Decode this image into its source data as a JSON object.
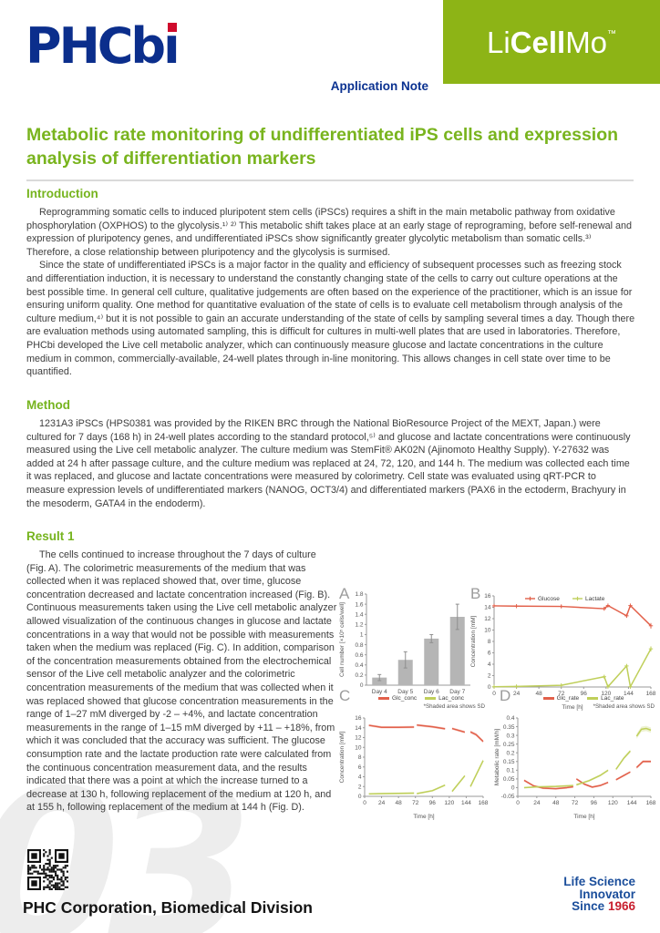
{
  "page": {
    "watermark": "03"
  },
  "brand": {
    "logo_text": "PHCbi",
    "logo_text_base": "PHCb",
    "logo_text_dotless_i": "ı",
    "logo_color": "#0b2e8c",
    "logo_dot_color": "#cf0a2c"
  },
  "header": {
    "product_badge": {
      "li": "Li",
      "cell": "Cell",
      "mo": "Mo",
      "tm": "™",
      "bg_color": "#8db416"
    },
    "note_label": "Application Note",
    "note_color": "#0a3190"
  },
  "title": {
    "text": "Metabolic rate monitoring of undifferentiated iPS cells and expression analysis of differentiation markers",
    "color": "#79b41e"
  },
  "sections": {
    "introduction": {
      "heading": "Introduction",
      "p1": "Reprogramming somatic cells to induced pluripotent stem cells (iPSCs) requires a shift in the main metabolic pathway from oxidative phosphorylation (OXPHOS) to the glycolysis.¹⁾ ²⁾ This metabolic shift takes place at an early stage of reprograming, before self-renewal and expression of pluripotency genes, and undifferentiated iPSCs show significantly greater glycolytic metabolism than somatic cells.³⁾ Therefore, a close relationship between pluripotency and the glycolysis is surmised.",
      "p2": "Since the state of undifferentiated iPSCs is a major factor in the quality and efficiency of subsequent processes such as freezing stock and differentiation induction, it is necessary to understand the constantly changing state of the cells to carry out culture operations at the best possible time. In general cell culture, qualitative judgements are often based on the experience of the practitioner, which is an issue for ensuring uniform quality. One method for quantitative evaluation of the state of cells is to evaluate cell metabolism through analysis of the culture medium,⁴⁾ but it is not possible to gain an accurate understanding of the state of cells by sampling several times a day. Though there are evaluation methods using automated sampling, this is difficult for cultures in multi-well plates that are used in laboratories. Therefore, PHCbi developed the Live cell metabolic analyzer, which can continuously measure glucose and lactate concentrations in the culture medium in common, commercially-available, 24-well plates through in-line monitoring. This allows changes in cell state over time to be quantified."
    },
    "method": {
      "heading": "Method",
      "p1": "1231A3 iPSCs (HPS0381 was provided by the RIKEN BRC through the National BioResource Project of the MEXT, Japan.) were cultured for 7 days (168 h) in 24-well plates according to the standard protocol,⁵⁾ and glucose and lactate concentrations were continuously measured using the Live cell metabolic analyzer. The culture medium was StemFit® AK02N (Ajinomoto Healthy Supply). Y-27632 was added at 24 h after passage culture, and the culture medium was replaced at 24, 72, 120, and 144 h. The medium was collected each time it was replaced, and glucose and lactate concentrations were measured by colorimetry. Cell state was evaluated using qRT-PCR to measure expression levels of undifferentiated markers (NANOG, OCT3/4) and differentiated markers (PAX6 in the ectoderm, Brachyury in the mesoderm, GATA4 in the endoderm)."
    },
    "result1": {
      "heading": "Result 1",
      "p1": "The cells continued to increase throughout the 7 days of culture (Fig. A). The colorimetric measurements of the medium that was collected when it was replaced showed that, over time, glucose concentration decreased and lactate concentration increased (Fig. B). Continuous measurements taken using the Live cell metabolic analyzer allowed visualization of the continuous changes in glucose and lactate concentrations in a way that would not be possible with measurements taken when the medium was replaced (Fig. C). In addition, comparison of the concentration measurements obtained from the electrochemical sensor of the Live cell metabolic analyzer and the colorimetric concentration measurements of the medium that was collected when it was replaced showed that glucose concentration measurements in the range of 1–27 mM diverged by -2 – +4%, and lactate concentration measurements in the range of 1–15 mM diverged by +11 – +18%, from which it was concluded that the accuracy was sufficient. The glucose consumption rate and the lactate production rate were calculated from the continuous concentration measurement data, and the results indicated that there was a point at which the increase turned to a decrease at 130 h, following replacement of the medium at 120 h, and at 155 h, following replacement of the medium at 144 h (Fig. D)."
    }
  },
  "footer": {
    "company": "PHC Corporation, Biomedical Division",
    "tagline_line1": "Life Science",
    "tagline_line2": "Innovator",
    "tagline_line3_prefix": "Since ",
    "tagline_line3_year": "1966",
    "tagline_color": "#1b4e9b",
    "year_color": "#c8202f"
  },
  "chart_data": [
    {
      "id": "A",
      "panel_label": "A",
      "type": "bar",
      "ylabel": "Cell number [×10⁵ cells/well]",
      "ylim": [
        0,
        1.8
      ],
      "ystep": 0.2,
      "categories": [
        "Day 4",
        "Day 5",
        "Day 6",
        "Day 7"
      ],
      "values": [
        0.15,
        0.5,
        0.92,
        1.35
      ],
      "errors": [
        0.06,
        0.16,
        0.08,
        0.25
      ],
      "bar_color": "#b5b5b5",
      "error_color": "#8f8f8f"
    },
    {
      "id": "B",
      "panel_label": "B",
      "type": "line",
      "xlabel": "Time [h]",
      "ylabel": "Concentration [mM]",
      "xlim": [
        0,
        168
      ],
      "xstep": 24,
      "ylim": [
        0,
        16
      ],
      "ystep": 2,
      "legend": [
        {
          "label": "Glucose",
          "color": "#e2604a"
        },
        {
          "label": "Lactate",
          "color": "#bfcf5a"
        }
      ],
      "legend_position": "top-inline",
      "series": [
        {
          "name": "Glucose",
          "color": "#e2604a",
          "marker": "plus",
          "segments": [
            {
              "pts": [
                [
                  0,
                  14.25
                ],
                [
                  24,
                  14.2
                ],
                [
                  72,
                  14.15
                ],
                [
                  118,
                  13.75
                ],
                [
                  122,
                  14.3
                ],
                [
                  142,
                  12.5
                ],
                [
                  146,
                  14.3
                ],
                [
                  168,
                  10.75
                ]
              ]
            }
          ],
          "point_errors": [
            0.15,
            0.1,
            0.25,
            0.3,
            0.1,
            0.35,
            0.1,
            0.5
          ]
        },
        {
          "name": "Lactate",
          "color": "#bfcf5a",
          "marker": "plus",
          "segments": [
            {
              "pts": [
                [
                  0,
                  0.05
                ],
                [
                  24,
                  0.1
                ],
                [
                  72,
                  0.3
                ],
                [
                  118,
                  1.8
                ],
                [
                  122,
                  0.05
                ],
                [
                  142,
                  3.7
                ],
                [
                  146,
                  0.05
                ],
                [
                  168,
                  6.7
                ]
              ]
            }
          ],
          "point_errors": [
            0,
            0,
            0.1,
            0.2,
            0,
            0.3,
            0,
            0.45
          ]
        }
      ]
    },
    {
      "id": "C",
      "panel_label": "C",
      "type": "line",
      "xlabel": "Time [h]",
      "ylabel": "Concentration [mM]",
      "xlim": [
        0,
        168
      ],
      "xstep": 24,
      "ylim": [
        0,
        16
      ],
      "ystep": 2,
      "legend": [
        {
          "label": "Glc_conc",
          "color": "#e2604a"
        },
        {
          "label": "Lac_conc",
          "color": "#bfcf5a"
        }
      ],
      "note": "*Shaded area shows SD",
      "series": [
        {
          "name": "Glc_conc",
          "color": "#e2604a",
          "segments": [
            {
              "pts": [
                [
                  6,
                  14.5
                ],
                [
                  24,
                  14.1
                ],
                [
                  48,
                  14.1
                ],
                [
                  70,
                  14.15
                ]
              ],
              "sd": 0.25
            },
            {
              "pts": [
                [
                  74,
                  14.55
                ],
                [
                  96,
                  14.2
                ],
                [
                  114,
                  13.8
                ]
              ],
              "sd": 0.25
            },
            {
              "pts": [
                [
                  124,
                  13.85
                ],
                [
                  142,
                  13.1
                ]
              ],
              "sd": 0.25
            },
            {
              "pts": [
                [
                  150,
                  13.15
                ],
                [
                  158,
                  12.6
                ],
                [
                  168,
                  11.2
                ]
              ],
              "sd": 0.3
            }
          ]
        },
        {
          "name": "Lac_conc",
          "color": "#bfcf5a",
          "segments": [
            {
              "pts": [
                [
                  6,
                  0.5
                ],
                [
                  24,
                  0.55
                ],
                [
                  48,
                  0.6
                ],
                [
                  70,
                  0.65
                ]
              ],
              "sd": 0.2
            },
            {
              "pts": [
                [
                  74,
                  0.55
                ],
                [
                  96,
                  1.15
                ],
                [
                  114,
                  2.3
                ]
              ],
              "sd": 0.2
            },
            {
              "pts": [
                [
                  124,
                  1.0
                ],
                [
                  142,
                  4.2
                ]
              ],
              "sd": 0.25
            },
            {
              "pts": [
                [
                  150,
                  2.0
                ],
                [
                  168,
                  7.3
                ]
              ],
              "sd": 0.3
            }
          ]
        }
      ]
    },
    {
      "id": "D",
      "panel_label": "D",
      "type": "line",
      "xlabel": "Time [h]",
      "ylabel": "Metabolic rate [mM/h]",
      "xlim": [
        0,
        168
      ],
      "xstep": 24,
      "ylim": [
        -0.05,
        0.4
      ],
      "ystep": 0.05,
      "legend": [
        {
          "label": "Glc_rate",
          "color": "#e2604a"
        },
        {
          "label": "Lac_rate",
          "color": "#bfcf5a"
        }
      ],
      "note": "*Shaded area shows SD",
      "series": [
        {
          "name": "Glc_rate",
          "color": "#e2604a",
          "segments": [
            {
              "pts": [
                [
                  8,
                  0.042
                ],
                [
                  20,
                  0.01
                ],
                [
                  32,
                  -0.003
                ],
                [
                  48,
                  -0.006
                ],
                [
                  62,
                  0
                ],
                [
                  70,
                  0.005
                ]
              ],
              "sd": 0.006
            },
            {
              "pts": [
                [
                  74,
                  0.05
                ],
                [
                  84,
                  0.02
                ],
                [
                  94,
                  0.003
                ],
                [
                  104,
                  0.012
                ],
                [
                  114,
                  0.03
                ]
              ],
              "sd": 0.006
            },
            {
              "pts": [
                [
                  124,
                  0.045
                ],
                [
                  134,
                  0.07
                ],
                [
                  142,
                  0.09
                ]
              ],
              "sd": 0.006
            },
            {
              "pts": [
                [
                  150,
                  0.115
                ],
                [
                  158,
                  0.15
                ],
                [
                  168,
                  0.15
                ]
              ],
              "sd": 0.008
            }
          ]
        },
        {
          "name": "Lac_rate",
          "color": "#bfcf5a",
          "segments": [
            {
              "pts": [
                [
                  8,
                  0
                ],
                [
                  24,
                  0.004
                ],
                [
                  48,
                  0.007
                ],
                [
                  70,
                  0.012
                ]
              ],
              "sd": 0.005
            },
            {
              "pts": [
                [
                  74,
                  0.016
                ],
                [
                  90,
                  0.04
                ],
                [
                  104,
                  0.07
                ],
                [
                  114,
                  0.1
                ]
              ],
              "sd": 0.006
            },
            {
              "pts": [
                [
                  124,
                  0.105
                ],
                [
                  134,
                  0.17
                ],
                [
                  142,
                  0.21
                ]
              ],
              "sd": 0.008
            },
            {
              "pts": [
                [
                  150,
                  0.295
                ],
                [
                  156,
                  0.335
                ],
                [
                  162,
                  0.34
                ],
                [
                  168,
                  0.33
                ]
              ],
              "sd": 0.015
            }
          ]
        }
      ]
    }
  ]
}
